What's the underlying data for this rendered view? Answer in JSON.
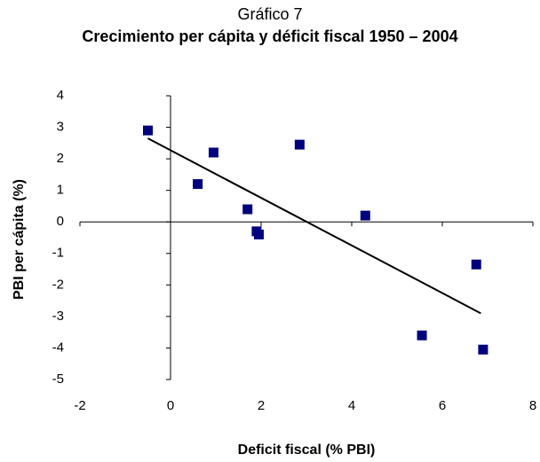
{
  "chart_data": {
    "type": "scatter",
    "title": "Gráfico 7",
    "subtitle": "Crecimiento per cápita y déficit fiscal 1950 – 2004",
    "x_label": "Deficit fiscal (% PBI)",
    "y_label": "PBI per cápita (%)",
    "xlim": [
      -2,
      8
    ],
    "xticks": [
      -2,
      0,
      2,
      4,
      6,
      8
    ],
    "ylim": [
      -5,
      4
    ],
    "yticks": [
      -5,
      -4,
      -3,
      -2,
      -1,
      0,
      1,
      2,
      3,
      4
    ],
    "color": "#000080",
    "x": [
      -0.5,
      0.6,
      0.95,
      1.7,
      1.9,
      1.95,
      2.85,
      4.3,
      5.55,
      6.75,
      6.9
    ],
    "y": [
      2.9,
      1.2,
      2.2,
      0.4,
      -0.3,
      -0.4,
      2.45,
      0.2,
      -3.6,
      -1.35,
      -4.05
    ],
    "trendline": {
      "x": [
        -0.5,
        6.85
      ],
      "y": [
        2.65,
        -2.9
      ],
      "color": "#000000"
    }
  }
}
